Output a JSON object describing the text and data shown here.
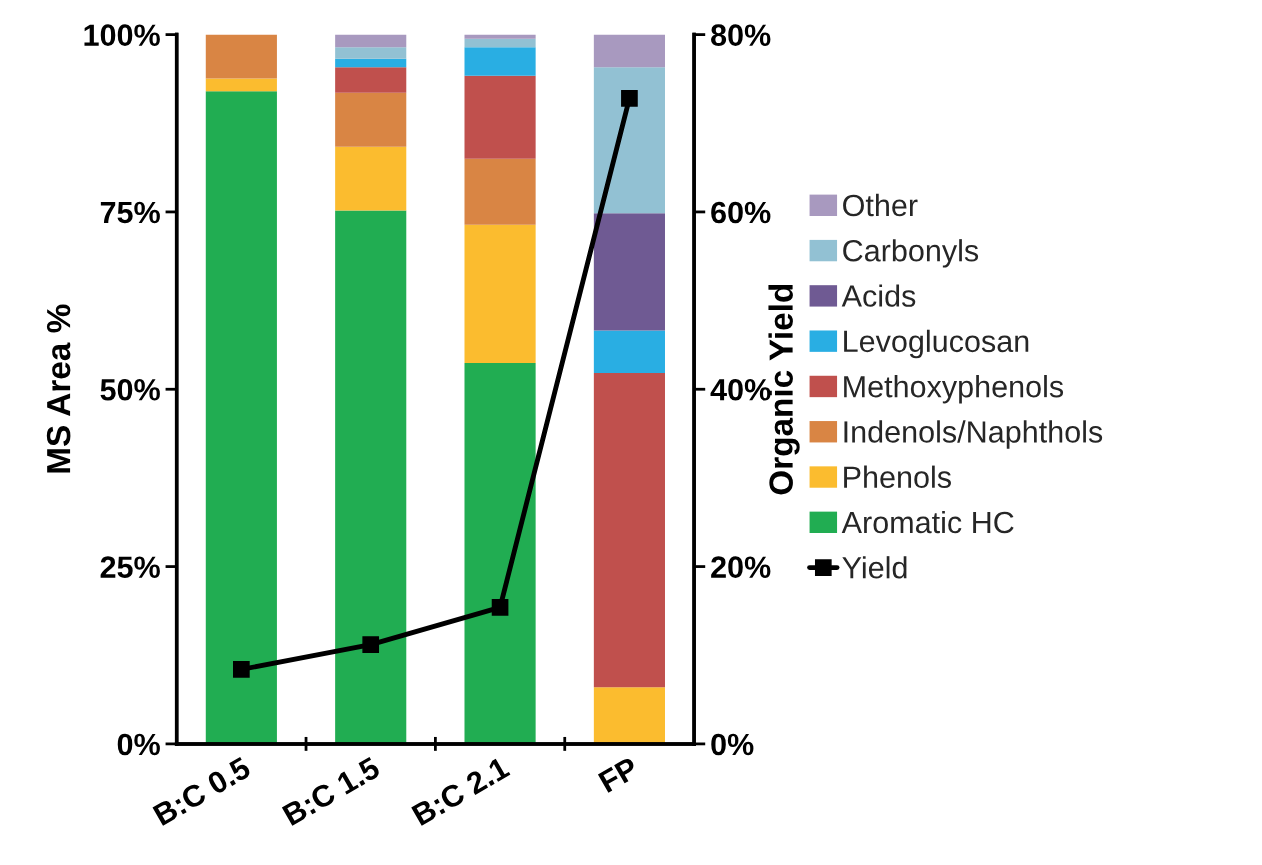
{
  "chart_data": {
    "type": "bar",
    "stacked": true,
    "ylabel": "MS Area %",
    "y2label": "Organic Yield",
    "categories": [
      "B:C 0.5",
      "B:C 1.5",
      "B:C 2.1",
      "FP"
    ],
    "ylim": [
      0,
      100
    ],
    "yticks": [
      {
        "value": 0,
        "label": "0%"
      },
      {
        "value": 25,
        "label": "25%"
      },
      {
        "value": 50,
        "label": "50%"
      },
      {
        "value": 75,
        "label": "75%"
      },
      {
        "value": 100,
        "label": "100%"
      }
    ],
    "y2lim": [
      0,
      80
    ],
    "y2ticks": [
      {
        "value": 0,
        "label": "0%"
      },
      {
        "value": 20,
        "label": "20%"
      },
      {
        "value": 40,
        "label": "40%"
      },
      {
        "value": 60,
        "label": "60%"
      },
      {
        "value": 80,
        "label": "80%"
      }
    ],
    "grid": false,
    "legend": "right",
    "series": [
      {
        "name": "Aromatic HC",
        "color": "#21ad52",
        "values": [
          92.0,
          75.2,
          53.7,
          0
        ]
      },
      {
        "name": "Phenols",
        "color": "#fbbc2f",
        "values": [
          1.8,
          9.0,
          19.5,
          8.0
        ]
      },
      {
        "name": "Indenols/Naphthols",
        "color": "#d98544",
        "values": [
          6.2,
          7.6,
          9.3,
          0
        ]
      },
      {
        "name": "Methoxyphenols",
        "color": "#c0504d",
        "values": [
          0,
          3.6,
          11.7,
          44.3
        ]
      },
      {
        "name": "Levoglucosan",
        "color": "#29aee3",
        "values": [
          0,
          1.2,
          4.0,
          6.0
        ]
      },
      {
        "name": "Acids",
        "color": "#6f5a93",
        "values": [
          0,
          0,
          0,
          16.5
        ]
      },
      {
        "name": "Carbonyls",
        "color": "#92c1d3",
        "values": [
          0,
          1.6,
          1.2,
          20.6
        ]
      },
      {
        "name": "Other",
        "color": "#a899bf",
        "values": [
          0,
          1.8,
          0.6,
          4.6
        ]
      },
      {
        "name": "Yield",
        "type": "line",
        "axis": "y2",
        "color": "#000000",
        "marker": "square",
        "line_style": "solid",
        "values": [
          8.4,
          11.2,
          15.4,
          72.8
        ]
      }
    ]
  }
}
